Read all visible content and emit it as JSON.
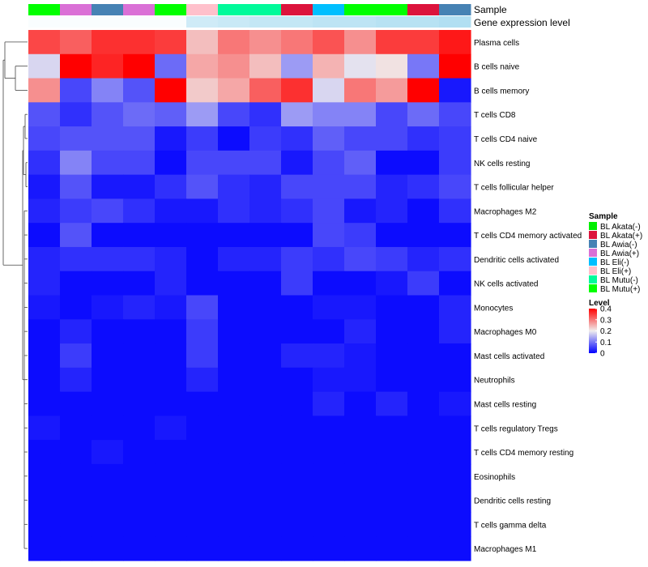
{
  "chart_data": {
    "type": "heatmap",
    "annotation_labels": {
      "sample": "Sample",
      "gene_expression": "Gene expression level"
    },
    "columns": [
      {
        "sample": "BL Mutu(+)",
        "gene_expression": 0.05
      },
      {
        "sample": "BL Awia(+)",
        "gene_expression": 0.05
      },
      {
        "sample": "BL Awia(-)",
        "gene_expression": 0.05
      },
      {
        "sample": "BL Awia(+)",
        "gene_expression": 0.05
      },
      {
        "sample": "BL Mutu(+)",
        "gene_expression": 0.05
      },
      {
        "sample": "BL Eli(+)",
        "gene_expression": 0.4
      },
      {
        "sample": "BL Mutu(-)",
        "gene_expression": 0.45
      },
      {
        "sample": "BL Mutu(-)",
        "gene_expression": 0.5
      },
      {
        "sample": "BL Akata(+)",
        "gene_expression": 0.5
      },
      {
        "sample": "BL Eli(-)",
        "gene_expression": 0.55
      },
      {
        "sample": "BL Mutu(+)",
        "gene_expression": 0.55
      },
      {
        "sample": "BL Mutu(+)",
        "gene_expression": 0.6
      },
      {
        "sample": "BL Akata(+)",
        "gene_expression": 0.6
      },
      {
        "sample": "BL Awia(-)",
        "gene_expression": 0.65
      }
    ],
    "rows": [
      "Plasma cells",
      "B cells naive",
      "B cells memory",
      "T cells CD8",
      "T cells CD4 naive",
      "NK cells resting",
      "T cells follicular helper",
      "Macrophages M2",
      "T cells CD4 memory activated",
      "Dendritic cells activated",
      "NK cells activated",
      "Monocytes",
      "Macrophages M0",
      "Mast cells activated",
      "Neutrophils",
      "Mast cells resting",
      "T cells regulatory  Tregs",
      "T cells CD4 memory resting",
      "Eosinophils",
      "Dendritic cells resting",
      "T cells gamma delta",
      "Macrophages M1"
    ],
    "values": [
      [
        0.34,
        0.32,
        0.36,
        0.36,
        0.35,
        0.24,
        0.3,
        0.28,
        0.3,
        0.33,
        0.28,
        0.35,
        0.35,
        0.38
      ],
      [
        0.18,
        0.4,
        0.37,
        0.4,
        0.09,
        0.26,
        0.28,
        0.24,
        0.13,
        0.25,
        0.19,
        0.21,
        0.1,
        0.4
      ],
      [
        0.28,
        0.06,
        0.11,
        0.07,
        0.4,
        0.23,
        0.26,
        0.32,
        0.36,
        0.18,
        0.3,
        0.27,
        0.4,
        0.02
      ],
      [
        0.07,
        0.04,
        0.07,
        0.09,
        0.08,
        0.13,
        0.06,
        0.04,
        0.13,
        0.11,
        0.11,
        0.06,
        0.09,
        0.06
      ],
      [
        0.06,
        0.07,
        0.07,
        0.07,
        0.02,
        0.05,
        0.01,
        0.05,
        0.04,
        0.08,
        0.06,
        0.06,
        0.04,
        0.05
      ],
      [
        0.04,
        0.11,
        0.06,
        0.06,
        0.01,
        0.06,
        0.06,
        0.06,
        0.02,
        0.06,
        0.08,
        0.01,
        0.01,
        0.05
      ],
      [
        0.02,
        0.07,
        0.02,
        0.02,
        0.04,
        0.07,
        0.04,
        0.03,
        0.06,
        0.06,
        0.06,
        0.03,
        0.04,
        0.06
      ],
      [
        0.03,
        0.05,
        0.06,
        0.04,
        0.02,
        0.02,
        0.04,
        0.03,
        0.04,
        0.06,
        0.02,
        0.03,
        0.01,
        0.04
      ],
      [
        0.01,
        0.07,
        0.01,
        0.01,
        0.01,
        0.01,
        0.01,
        0.01,
        0.01,
        0.06,
        0.05,
        0.01,
        0.01,
        0.01
      ],
      [
        0.03,
        0.04,
        0.04,
        0.04,
        0.03,
        0.01,
        0.03,
        0.03,
        0.05,
        0.04,
        0.06,
        0.05,
        0.03,
        0.04
      ],
      [
        0.03,
        0.01,
        0.01,
        0.01,
        0.03,
        0.01,
        0.01,
        0.01,
        0.05,
        0.01,
        0.01,
        0.02,
        0.05,
        0.01
      ],
      [
        0.02,
        0.01,
        0.02,
        0.03,
        0.02,
        0.06,
        0.01,
        0.01,
        0.01,
        0.02,
        0.02,
        0.01,
        0.01,
        0.03
      ],
      [
        0.01,
        0.03,
        0.01,
        0.01,
        0.01,
        0.05,
        0.01,
        0.01,
        0.01,
        0.01,
        0.03,
        0.01,
        0.01,
        0.03
      ],
      [
        0.01,
        0.05,
        0.01,
        0.01,
        0.01,
        0.05,
        0.01,
        0.01,
        0.03,
        0.03,
        0.02,
        0.01,
        0.01,
        0.01
      ],
      [
        0.01,
        0.03,
        0.01,
        0.01,
        0.01,
        0.03,
        0.01,
        0.01,
        0.01,
        0.02,
        0.02,
        0.01,
        0.01,
        0.01
      ],
      [
        0.01,
        0.01,
        0.01,
        0.01,
        0.01,
        0.01,
        0.01,
        0.01,
        0.01,
        0.03,
        0.01,
        0.03,
        0.01,
        0.02
      ],
      [
        0.02,
        0.01,
        0.01,
        0.01,
        0.02,
        0.01,
        0.01,
        0.01,
        0.01,
        0.01,
        0.01,
        0.01,
        0.01,
        0.01
      ],
      [
        0.01,
        0.01,
        0.02,
        0.01,
        0.01,
        0.01,
        0.01,
        0.01,
        0.01,
        0.01,
        0.01,
        0.01,
        0.01,
        0.01
      ],
      [
        0.01,
        0.01,
        0.01,
        0.01,
        0.01,
        0.01,
        0.01,
        0.01,
        0.01,
        0.01,
        0.01,
        0.01,
        0.01,
        0.01
      ],
      [
        0.01,
        0.01,
        0.01,
        0.01,
        0.01,
        0.01,
        0.01,
        0.01,
        0.01,
        0.01,
        0.01,
        0.01,
        0.01,
        0.01
      ],
      [
        0.01,
        0.01,
        0.01,
        0.01,
        0.01,
        0.01,
        0.01,
        0.01,
        0.01,
        0.01,
        0.01,
        0.01,
        0.01,
        0.01
      ],
      [
        0.01,
        0.01,
        0.01,
        0.01,
        0.01,
        0.01,
        0.01,
        0.01,
        0.01,
        0.01,
        0.01,
        0.01,
        0.01,
        0.01
      ]
    ],
    "scale": {
      "min": 0,
      "max": 0.4,
      "low_color": "#0000ff",
      "mid_color": "#f0eeee",
      "high_color": "#ff0000"
    },
    "legends": {
      "sample": {
        "title": "Sample",
        "entries": [
          {
            "label": "BL Akata(-)",
            "color": "#00ee00"
          },
          {
            "label": "BL Akata(+)",
            "color": "#dc143c"
          },
          {
            "label": "BL Awia(-)",
            "color": "#4682b4"
          },
          {
            "label": "BL Awia(+)",
            "color": "#da70d6"
          },
          {
            "label": "BL Eli(-)",
            "color": "#00bfff"
          },
          {
            "label": "BL Eli(+)",
            "color": "#ffc0cb"
          },
          {
            "label": "BL Mutu(-)",
            "color": "#00fa9a"
          },
          {
            "label": "BL Mutu(+)",
            "color": "#00ff00"
          }
        ]
      },
      "level": {
        "title": "Level",
        "ticks": [
          "0.4",
          "0.3",
          "0.2",
          "0.1",
          "0"
        ],
        "tick_values": [
          0.4,
          0.3,
          0.2,
          0.1,
          0
        ]
      }
    },
    "gene_expression_colors": [
      "#ffffff",
      "#87ceeb"
    ],
    "dendrogram": "hierarchical clustering of rows"
  }
}
